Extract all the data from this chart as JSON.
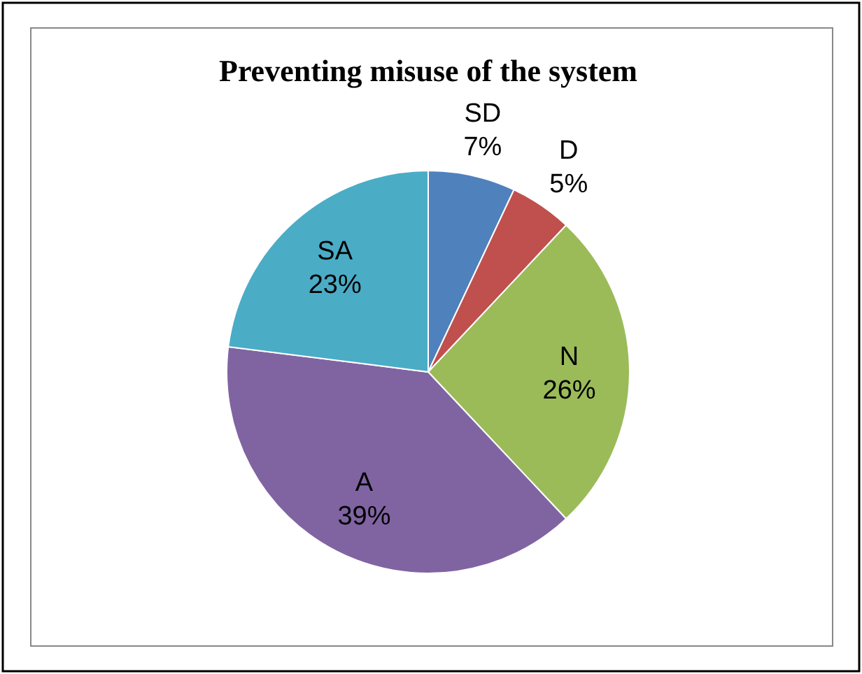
{
  "chart_data": {
    "type": "pie",
    "title": "Preventing misuse of the system",
    "categories": [
      "SD",
      "D",
      "N",
      "A",
      "SA"
    ],
    "values": [
      7,
      5,
      26,
      39,
      23
    ],
    "value_labels": [
      "7%",
      "5%",
      "26%",
      "39%",
      "23%"
    ],
    "colors": [
      "#4f81bd",
      "#c0504d",
      "#9bbb59",
      "#8064a2",
      "#4bacc6"
    ]
  }
}
